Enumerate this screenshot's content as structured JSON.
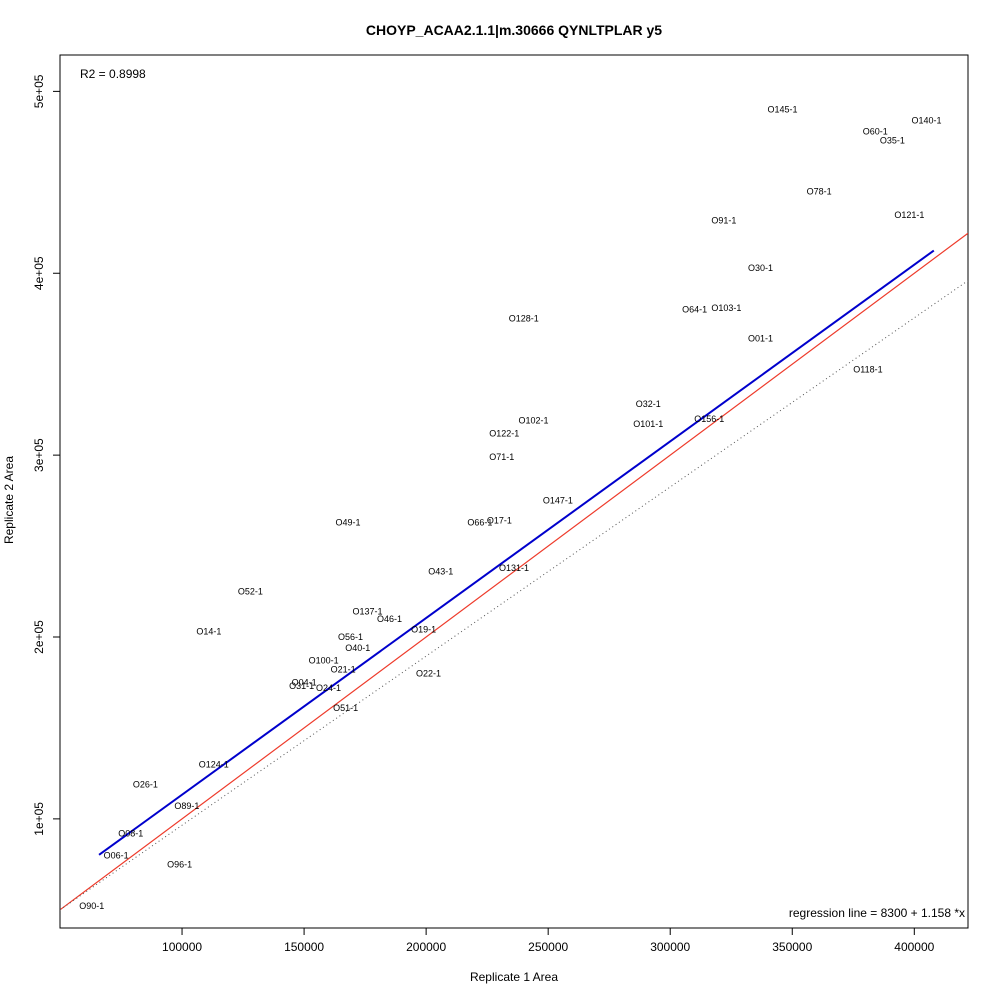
{
  "chart_data": {
    "type": "scatter",
    "title": "CHOYP_ACAA2.1.1|m.30666 QYNLTPLAR y5",
    "xlabel": "Replicate 1 Area",
    "ylabel": "Replicate 2 Area",
    "xlim": [
      50000,
      422000
    ],
    "ylim": [
      40000,
      520000
    ],
    "x_ticks": [
      100000,
      150000,
      200000,
      250000,
      300000,
      350000,
      400000
    ],
    "x_tick_labels": [
      "100000",
      "150000",
      "200000",
      "250000",
      "300000",
      "350000",
      "400000"
    ],
    "y_ticks": [
      100000,
      200000,
      300000,
      400000,
      500000
    ],
    "y_tick_labels": [
      "1e+05",
      "2e+05",
      "3e+05",
      "4e+05",
      "5e+05"
    ],
    "r2_text": "R2 = 0.8998",
    "regression_text": "regression line = 8300 + 1.158 *x",
    "regression": {
      "intercept": 8300,
      "slope": 1.158,
      "x_range": [
        66000,
        408000
      ],
      "color": "#0000cc"
    },
    "identity_line": {
      "intercept": 0,
      "slope": 1,
      "color": "#ee3b2b"
    },
    "dotted_line": {
      "intercept": 0,
      "slope": 1.0,
      "x_offset": 0,
      "color": "#555555"
    },
    "grid": false,
    "points": [
      {
        "label": "O145-1",
        "x": 346000,
        "y": 490000
      },
      {
        "label": "O140-1",
        "x": 405000,
        "y": 484000
      },
      {
        "label": "O60-1",
        "x": 384000,
        "y": 478000
      },
      {
        "label": "O35-1",
        "x": 391000,
        "y": 473000
      },
      {
        "label": "O78-1",
        "x": 361000,
        "y": 445000
      },
      {
        "label": "O121-1",
        "x": 398000,
        "y": 432000
      },
      {
        "label": "O91-1",
        "x": 322000,
        "y": 429000
      },
      {
        "label": "O30-1",
        "x": 337000,
        "y": 403000
      },
      {
        "label": "O64-1",
        "x": 310000,
        "y": 380000
      },
      {
        "label": "O103-1",
        "x": 323000,
        "y": 381000
      },
      {
        "label": "O128-1",
        "x": 240000,
        "y": 375000
      },
      {
        "label": "O01-1",
        "x": 337000,
        "y": 364000
      },
      {
        "label": "O118-1",
        "x": 381000,
        "y": 347000
      },
      {
        "label": "O32-1",
        "x": 291000,
        "y": 328000
      },
      {
        "label": "O102-1",
        "x": 244000,
        "y": 319000
      },
      {
        "label": "O101-1",
        "x": 291000,
        "y": 317000
      },
      {
        "label": "O156-1",
        "x": 316000,
        "y": 320000
      },
      {
        "label": "O122-1",
        "x": 232000,
        "y": 312000
      },
      {
        "label": "O71-1",
        "x": 231000,
        "y": 299000
      },
      {
        "label": "O147-1",
        "x": 254000,
        "y": 275000
      },
      {
        "label": "O49-1",
        "x": 168000,
        "y": 263000
      },
      {
        "label": "O66-1",
        "x": 222000,
        "y": 263000
      },
      {
        "label": "O17-1",
        "x": 230000,
        "y": 264000
      },
      {
        "label": "O43-1",
        "x": 206000,
        "y": 236000
      },
      {
        "label": "O131-1",
        "x": 236000,
        "y": 238000
      },
      {
        "label": "O52-1",
        "x": 128000,
        "y": 225000
      },
      {
        "label": "O137-1",
        "x": 176000,
        "y": 214000
      },
      {
        "label": "O46-1",
        "x": 185000,
        "y": 210000
      },
      {
        "label": "O14-1",
        "x": 111000,
        "y": 203000
      },
      {
        "label": "O19-1",
        "x": 199000,
        "y": 204000
      },
      {
        "label": "O56-1",
        "x": 169000,
        "y": 200000
      },
      {
        "label": "O40-1",
        "x": 172000,
        "y": 194000
      },
      {
        "label": "O100-1",
        "x": 158000,
        "y": 187000
      },
      {
        "label": "O21-1",
        "x": 166000,
        "y": 182000
      },
      {
        "label": "O22-1",
        "x": 201000,
        "y": 180000
      },
      {
        "label": "O04-1",
        "x": 150000,
        "y": 175000
      },
      {
        "label": "O31-1",
        "x": 149000,
        "y": 173000
      },
      {
        "label": "O24-1",
        "x": 160000,
        "y": 172000
      },
      {
        "label": "O51-1",
        "x": 167000,
        "y": 161000
      },
      {
        "label": "O124-1",
        "x": 113000,
        "y": 130000
      },
      {
        "label": "O26-1",
        "x": 85000,
        "y": 119000
      },
      {
        "label": "O89-1",
        "x": 102000,
        "y": 107000
      },
      {
        "label": "O08-1",
        "x": 79000,
        "y": 92000
      },
      {
        "label": "O06-1",
        "x": 73000,
        "y": 80000
      },
      {
        "label": "O96-1",
        "x": 99000,
        "y": 75000
      },
      {
        "label": "O90-1",
        "x": 63000,
        "y": 52000
      }
    ]
  }
}
